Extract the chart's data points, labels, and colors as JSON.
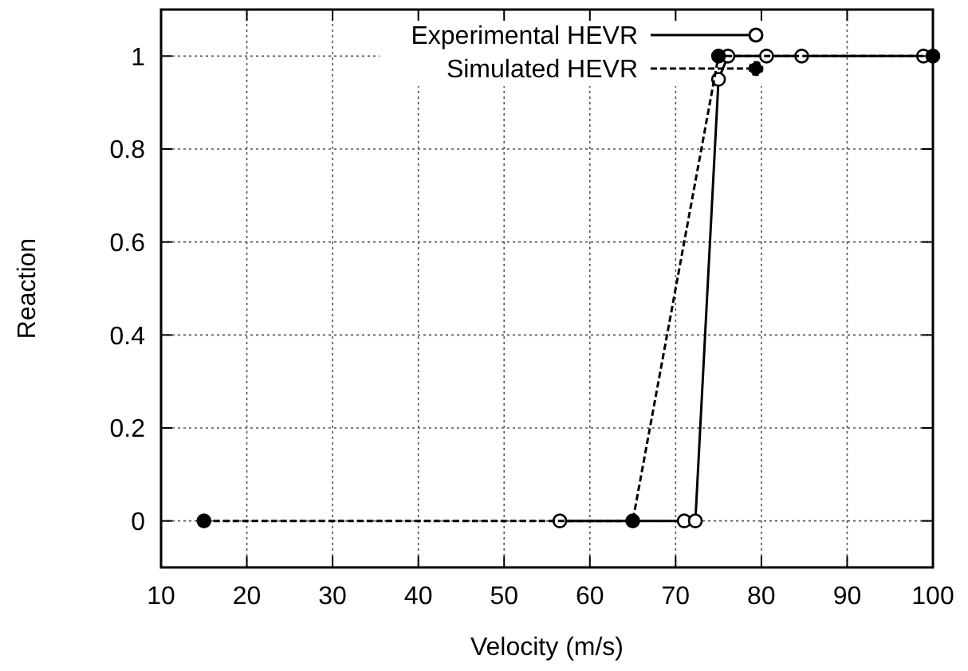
{
  "chart_data": {
    "type": "line",
    "xlabel": "Velocity (m/s)",
    "ylabel": "Reaction",
    "xlim": [
      10,
      100
    ],
    "xticks": [
      10,
      20,
      30,
      40,
      50,
      60,
      70,
      80,
      90,
      100
    ],
    "ylim": [
      -0.1,
      1.1
    ],
    "yticks": [
      0,
      0.2,
      0.4,
      0.6,
      0.8,
      1
    ],
    "grid": true,
    "legend": "top",
    "series": [
      {
        "name": "Experimental HEVR",
        "color": "#000000",
        "marker": "circle",
        "line_style": "solid",
        "x": [
          56.5,
          71,
          72.3,
          75,
          76.1,
          80.6,
          84.7,
          98.9
        ],
        "values": [
          0,
          0,
          0,
          0.95,
          1,
          1,
          1,
          1
        ]
      },
      {
        "name": "Simulated HEVR",
        "color": "#000000",
        "marker": "circle",
        "line_style": "dashed",
        "x": [
          15,
          65,
          75,
          100
        ],
        "values": [
          0,
          0,
          1,
          1
        ]
      }
    ]
  }
}
